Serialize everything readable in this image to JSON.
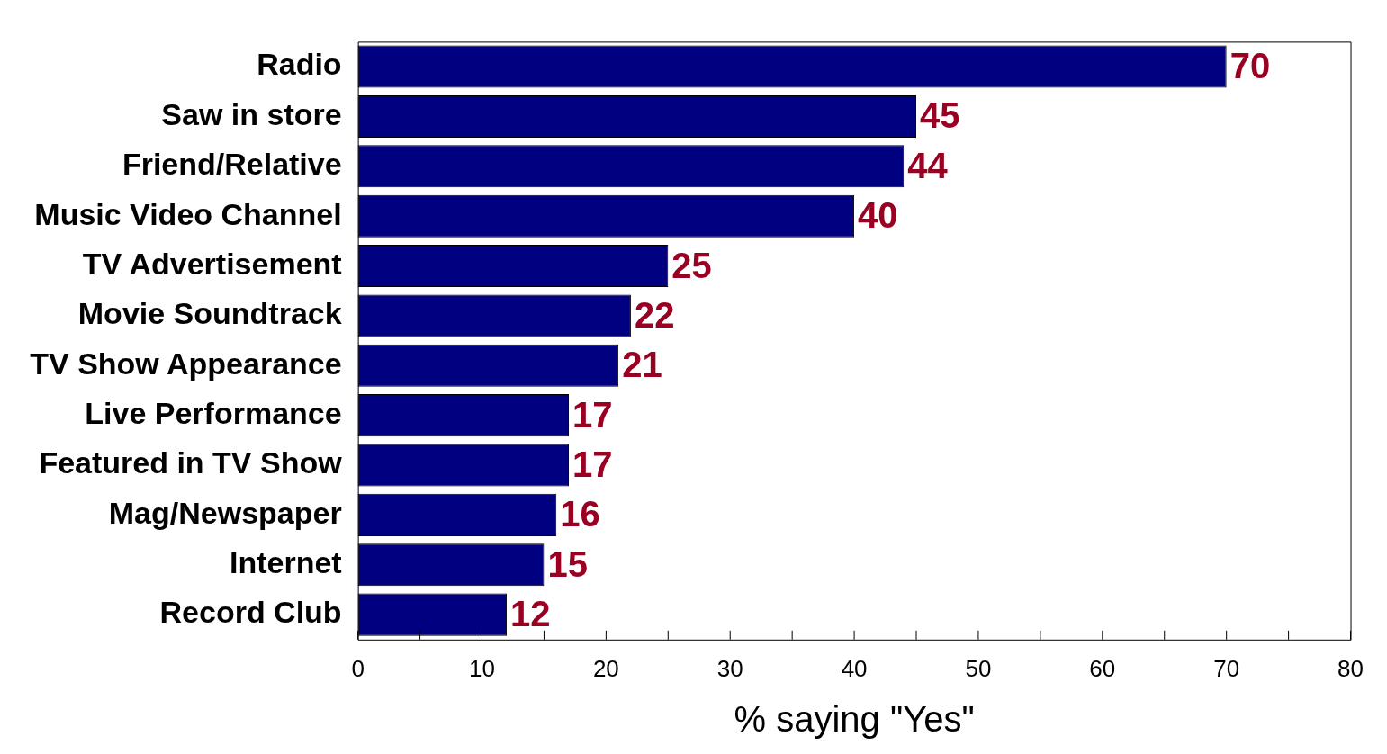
{
  "chart_data": {
    "type": "bar",
    "orientation": "horizontal",
    "xlabel": "% saying \"Yes\"",
    "categories": [
      "Radio",
      "Saw in store",
      "Friend/Relative",
      "Music Video Channel",
      "TV Advertisement",
      "Movie Soundtrack",
      "TV Show Appearance",
      "Live Performance",
      "Featured in TV Show",
      "Mag/Newspaper",
      "Internet",
      "Record Club"
    ],
    "values": [
      70,
      45,
      44,
      40,
      25,
      22,
      21,
      17,
      17,
      16,
      15,
      12
    ],
    "color": "#000080",
    "xlim": [
      0,
      80
    ],
    "xticks": [
      0,
      {
        "value": 5,
        "label": null
      },
      10,
      {
        "value": 15,
        "label": null
      },
      20,
      {
        "value": 25,
        "label": null
      },
      30,
      {
        "value": 35,
        "label": null
      },
      40,
      {
        "value": 45,
        "label": null
      },
      50,
      {
        "value": 55,
        "label": null
      },
      60,
      {
        "value": 65,
        "label": null
      },
      70,
      {
        "value": 75,
        "label": null
      },
      80
    ],
    "data_labels": true,
    "grid": false,
    "legend": false
  }
}
